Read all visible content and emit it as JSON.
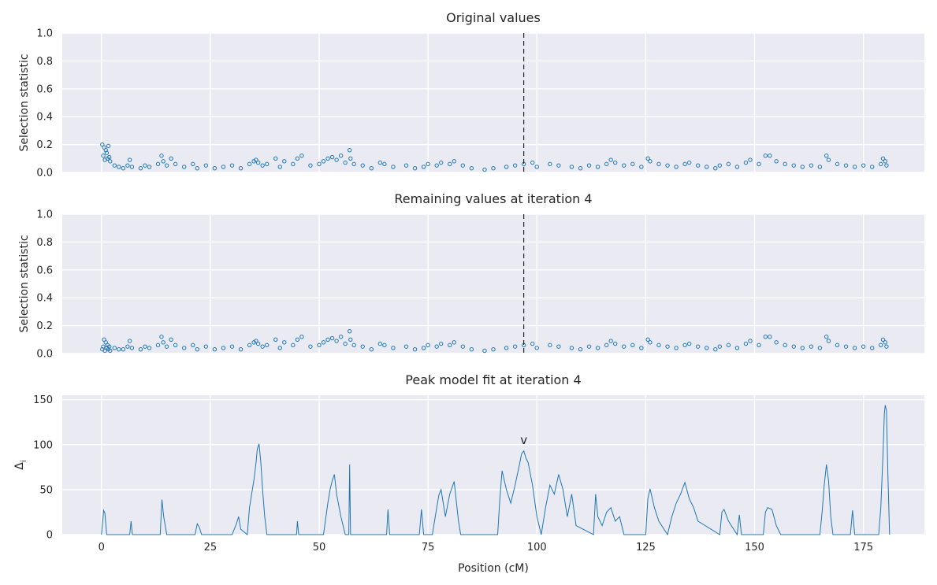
{
  "chart_data": [
    {
      "type": "scatter",
      "title": "Original values",
      "xlabel": "",
      "ylabel": "Selection statistic",
      "xlim": [
        -9,
        189
      ],
      "ylim": [
        0,
        1
      ],
      "yticks": [
        0.0,
        0.2,
        0.4,
        0.6,
        0.8,
        1.0
      ],
      "ytick_labels": [
        "0.0",
        "0.2",
        "0.4",
        "0.6",
        "0.8",
        "1.0"
      ],
      "xticks": [
        0,
        25,
        50,
        75,
        100,
        125,
        150,
        175
      ],
      "xtick_labels_visible": false,
      "grid": true,
      "marker": "open-circle",
      "series_color": "#1f77b4",
      "vline": {
        "x": 97,
        "style": "dashed",
        "color": "#000000"
      },
      "x": [
        0.2,
        0.4,
        0.6,
        0.8,
        1.0,
        1.2,
        1.4,
        1.6,
        1.8,
        2,
        3,
        4,
        5,
        6,
        6.5,
        7,
        9,
        10,
        11,
        13,
        13.8,
        14.2,
        15,
        16,
        17,
        19,
        21,
        22,
        24,
        26,
        28,
        30,
        32,
        34,
        35,
        35.5,
        36,
        37,
        38,
        40,
        41,
        42,
        44,
        45,
        46,
        48,
        50,
        51,
        52,
        53,
        54,
        55,
        56,
        57,
        57.2,
        58,
        60,
        62,
        64,
        65,
        67,
        70,
        72,
        74,
        75,
        77,
        78,
        80,
        81,
        83,
        85,
        88,
        90,
        93,
        95,
        97,
        99,
        100,
        103,
        105,
        108,
        110,
        112,
        114,
        116,
        117,
        118,
        120,
        122,
        124,
        125.5,
        126,
        128,
        130,
        132,
        134,
        135,
        137,
        139,
        141,
        142,
        144,
        146,
        148,
        149,
        151,
        152.5,
        153.5,
        155,
        157,
        159,
        161,
        163,
        165,
        166.5,
        167,
        169,
        171,
        173,
        175,
        177,
        179,
        179.5,
        180,
        180.3
      ],
      "y": [
        0.2,
        0.12,
        0.18,
        0.09,
        0.16,
        0.14,
        0.1,
        0.19,
        0.11,
        0.08,
        0.05,
        0.04,
        0.03,
        0.05,
        0.09,
        0.04,
        0.03,
        0.05,
        0.04,
        0.06,
        0.12,
        0.08,
        0.05,
        0.1,
        0.06,
        0.04,
        0.06,
        0.03,
        0.05,
        0.03,
        0.04,
        0.05,
        0.03,
        0.06,
        0.08,
        0.09,
        0.07,
        0.05,
        0.06,
        0.1,
        0.04,
        0.08,
        0.06,
        0.1,
        0.12,
        0.05,
        0.06,
        0.08,
        0.1,
        0.11,
        0.09,
        0.12,
        0.07,
        0.16,
        0.1,
        0.06,
        0.05,
        0.03,
        0.07,
        0.06,
        0.04,
        0.05,
        0.03,
        0.04,
        0.06,
        0.05,
        0.07,
        0.06,
        0.08,
        0.05,
        0.03,
        0.02,
        0.03,
        0.04,
        0.05,
        0.06,
        0.07,
        0.04,
        0.06,
        0.05,
        0.04,
        0.03,
        0.05,
        0.04,
        0.06,
        0.09,
        0.07,
        0.05,
        0.06,
        0.04,
        0.1,
        0.08,
        0.06,
        0.05,
        0.04,
        0.06,
        0.07,
        0.05,
        0.04,
        0.03,
        0.05,
        0.06,
        0.04,
        0.07,
        0.09,
        0.06,
        0.12,
        0.12,
        0.08,
        0.06,
        0.05,
        0.04,
        0.05,
        0.04,
        0.12,
        0.09,
        0.06,
        0.05,
        0.04,
        0.05,
        0.04,
        0.06,
        0.1,
        0.08,
        0.05
      ]
    },
    {
      "type": "scatter",
      "title": "Remaining values at iteration 4",
      "xlabel": "",
      "ylabel": "Selection statistic",
      "xlim": [
        -9,
        189
      ],
      "ylim": [
        0,
        1
      ],
      "yticks": [
        0.0,
        0.2,
        0.4,
        0.6,
        0.8,
        1.0
      ],
      "ytick_labels": [
        "0.0",
        "0.2",
        "0.4",
        "0.6",
        "0.8",
        "1.0"
      ],
      "xticks": [
        0,
        25,
        50,
        75,
        100,
        125,
        150,
        175
      ],
      "xtick_labels_visible": false,
      "grid": true,
      "marker": "open-circle",
      "series_color": "#1f77b4",
      "vline": {
        "x": 97,
        "style": "dashed",
        "color": "#000000"
      },
      "x": [
        0.2,
        0.4,
        0.6,
        0.8,
        1.0,
        1.2,
        1.4,
        1.6,
        1.8,
        2,
        3,
        4,
        5,
        6,
        6.5,
        7,
        9,
        10,
        11,
        13,
        13.8,
        14.2,
        15,
        16,
        17,
        19,
        21,
        22,
        24,
        26,
        28,
        30,
        32,
        34,
        35,
        35.5,
        36,
        37,
        38,
        40,
        41,
        42,
        44,
        45,
        46,
        48,
        50,
        51,
        52,
        53,
        54,
        55,
        56,
        57,
        57.2,
        58,
        60,
        62,
        64,
        65,
        67,
        70,
        72,
        74,
        75,
        77,
        78,
        80,
        81,
        83,
        85,
        88,
        90,
        93,
        95,
        97,
        99,
        100,
        103,
        105,
        108,
        110,
        112,
        114,
        116,
        117,
        118,
        120,
        122,
        124,
        125.5,
        126,
        128,
        130,
        132,
        134,
        135,
        137,
        139,
        141,
        142,
        144,
        146,
        148,
        149,
        151,
        152.5,
        153.5,
        155,
        157,
        159,
        161,
        163,
        165,
        166.5,
        167,
        169,
        171,
        173,
        175,
        177,
        179,
        179.5,
        180,
        180.3
      ],
      "y": [
        0.03,
        0.05,
        0.1,
        0.02,
        0.08,
        0.04,
        0.06,
        0.03,
        0.05,
        0.02,
        0.04,
        0.03,
        0.03,
        0.05,
        0.09,
        0.04,
        0.03,
        0.05,
        0.04,
        0.06,
        0.12,
        0.08,
        0.05,
        0.1,
        0.06,
        0.04,
        0.06,
        0.03,
        0.05,
        0.03,
        0.04,
        0.05,
        0.03,
        0.06,
        0.08,
        0.09,
        0.07,
        0.05,
        0.06,
        0.1,
        0.04,
        0.08,
        0.06,
        0.1,
        0.12,
        0.05,
        0.06,
        0.08,
        0.1,
        0.11,
        0.09,
        0.12,
        0.07,
        0.16,
        0.1,
        0.06,
        0.05,
        0.03,
        0.07,
        0.06,
        0.04,
        0.05,
        0.03,
        0.04,
        0.06,
        0.05,
        0.07,
        0.06,
        0.08,
        0.05,
        0.03,
        0.02,
        0.03,
        0.04,
        0.05,
        0.06,
        0.07,
        0.04,
        0.06,
        0.05,
        0.04,
        0.03,
        0.05,
        0.04,
        0.06,
        0.09,
        0.07,
        0.05,
        0.06,
        0.04,
        0.1,
        0.08,
        0.06,
        0.05,
        0.04,
        0.06,
        0.07,
        0.05,
        0.04,
        0.03,
        0.05,
        0.06,
        0.04,
        0.07,
        0.09,
        0.06,
        0.12,
        0.12,
        0.08,
        0.06,
        0.05,
        0.04,
        0.05,
        0.04,
        0.12,
        0.09,
        0.06,
        0.05,
        0.04,
        0.05,
        0.04,
        0.06,
        0.1,
        0.08,
        0.05
      ]
    },
    {
      "type": "line",
      "title": "Peak model fit at iteration 4",
      "xlabel": "Position (cM)",
      "ylabel": "Δ",
      "ylabel_subscript": "i",
      "xlim": [
        -9,
        189
      ],
      "ylim": [
        0,
        155
      ],
      "yticks": [
        0,
        50,
        100,
        150
      ],
      "ytick_labels": [
        "0",
        "50",
        "100",
        "150"
      ],
      "xticks": [
        0,
        25,
        50,
        75,
        100,
        125,
        150,
        175
      ],
      "xtick_labels": [
        "0",
        "25",
        "50",
        "75",
        "100",
        "125",
        "150",
        "175"
      ],
      "grid": true,
      "series_color": "#1f77b4",
      "annotation": {
        "text": "v",
        "x": 97,
        "y": 97
      },
      "x": [
        0,
        0.3,
        0.5,
        0.8,
        1.2,
        2,
        6.5,
        6.8,
        7.1,
        13.5,
        13.9,
        14.3,
        15,
        21.5,
        22,
        22.5,
        23,
        30,
        31,
        31.5,
        32,
        33.5,
        34,
        34.5,
        35,
        35.5,
        35.8,
        36.2,
        36.6,
        37,
        37.5,
        38,
        44.8,
        45,
        45.3,
        51,
        52,
        52.5,
        53,
        53.5,
        54,
        55,
        56,
        56.8,
        57,
        57.2,
        65.5,
        65.8,
        66.2,
        73,
        73.5,
        74,
        76,
        77,
        77.5,
        78,
        79,
        80,
        81,
        82,
        82.5,
        85,
        91,
        91.5,
        92,
        93,
        94,
        95,
        96,
        96.5,
        97,
        97.5,
        98,
        99,
        100,
        101,
        102,
        103,
        104,
        105,
        106,
        107,
        108,
        109,
        113,
        113.5,
        114,
        115,
        116,
        117,
        118,
        119,
        120,
        125,
        125.5,
        126,
        127,
        128,
        130,
        131,
        132,
        133,
        134,
        135,
        136,
        137,
        142,
        142.5,
        143,
        144,
        146,
        146.5,
        147,
        152,
        152.5,
        153,
        154,
        155,
        156,
        165,
        165.5,
        166,
        166.5,
        167,
        167.5,
        168,
        172,
        172.5,
        173,
        176,
        178.5,
        179,
        179.5,
        179.8,
        180,
        180.3,
        180.6,
        181
      ],
      "y": [
        0,
        15,
        27,
        24,
        0,
        0,
        0,
        15,
        0,
        0,
        39,
        20,
        0,
        0,
        12,
        8,
        0,
        0,
        12,
        20,
        6,
        0,
        30,
        45,
        60,
        80,
        95,
        101,
        80,
        50,
        20,
        0,
        0,
        15,
        0,
        0,
        35,
        50,
        60,
        67,
        45,
        20,
        0,
        0,
        78,
        0,
        0,
        28,
        0,
        0,
        28,
        0,
        0,
        30,
        44,
        50,
        20,
        45,
        59,
        15,
        0,
        0,
        0,
        40,
        71,
        50,
        35,
        55,
        78,
        90,
        93,
        85,
        80,
        55,
        20,
        0,
        30,
        55,
        45,
        67,
        50,
        20,
        45,
        10,
        0,
        45,
        20,
        10,
        25,
        30,
        15,
        20,
        0,
        0,
        40,
        51,
        30,
        15,
        0,
        20,
        35,
        45,
        58,
        40,
        30,
        15,
        0,
        25,
        28,
        15,
        0,
        22,
        0,
        0,
        25,
        30,
        28,
        10,
        0,
        0,
        25,
        55,
        78,
        60,
        20,
        0,
        0,
        27,
        0,
        0,
        0,
        30,
        90,
        135,
        144,
        138,
        70,
        0
      ]
    }
  ]
}
